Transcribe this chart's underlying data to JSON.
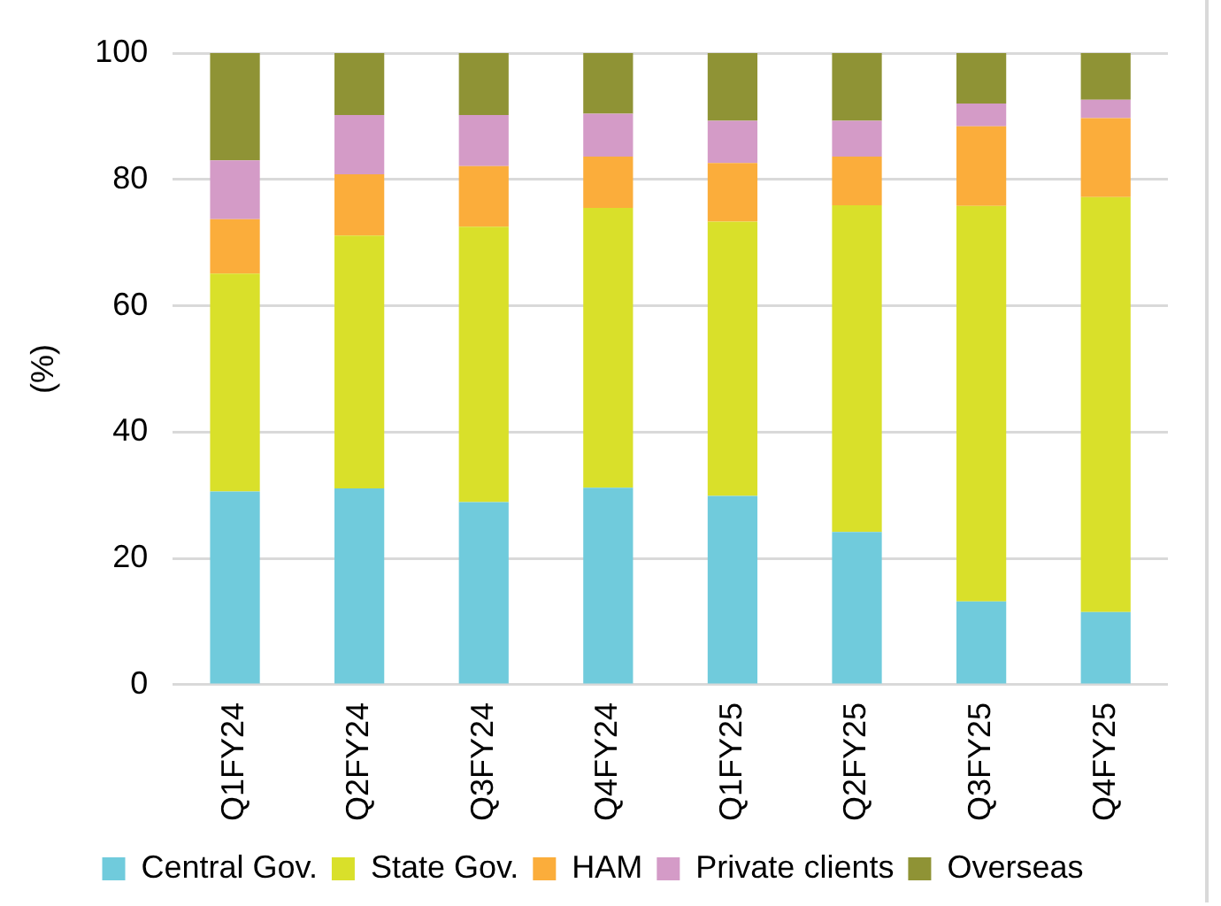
{
  "chart_data": {
    "type": "bar",
    "stacked": true,
    "ylabel": "(%)",
    "categories": [
      "Q1FY24",
      "Q2FY24",
      "Q3FY24",
      "Q4FY24",
      "Q1FY25",
      "Q2FY25",
      "Q3FY25",
      "Q4FY25"
    ],
    "series": [
      {
        "name": "Central Gov.",
        "color": "#70cbdc",
        "values": [
          30.6,
          31.1,
          28.9,
          31.2,
          29.9,
          24.2,
          13.2,
          11.5
        ]
      },
      {
        "name": "State Gov.",
        "color": "#d9e02a",
        "values": [
          34.5,
          40.0,
          43.6,
          44.3,
          43.4,
          51.7,
          62.6,
          65.7
        ]
      },
      {
        "name": "HAM",
        "color": "#fbad3b",
        "values": [
          8.6,
          9.7,
          9.6,
          8.1,
          9.3,
          7.7,
          12.6,
          12.5
        ]
      },
      {
        "name": "Private clients",
        "color": "#d49bc7",
        "values": [
          9.3,
          9.4,
          8.1,
          6.8,
          6.7,
          5.7,
          3.6,
          2.9
        ]
      },
      {
        "name": "Overseas",
        "color": "#8f9335",
        "values": [
          17.0,
          9.8,
          9.8,
          9.6,
          10.7,
          10.7,
          8.0,
          7.4
        ]
      }
    ],
    "ylim": [
      0,
      100
    ],
    "yticks": [
      0,
      20,
      40,
      60,
      80,
      100
    ],
    "grid": "y",
    "legend": "bottom"
  }
}
